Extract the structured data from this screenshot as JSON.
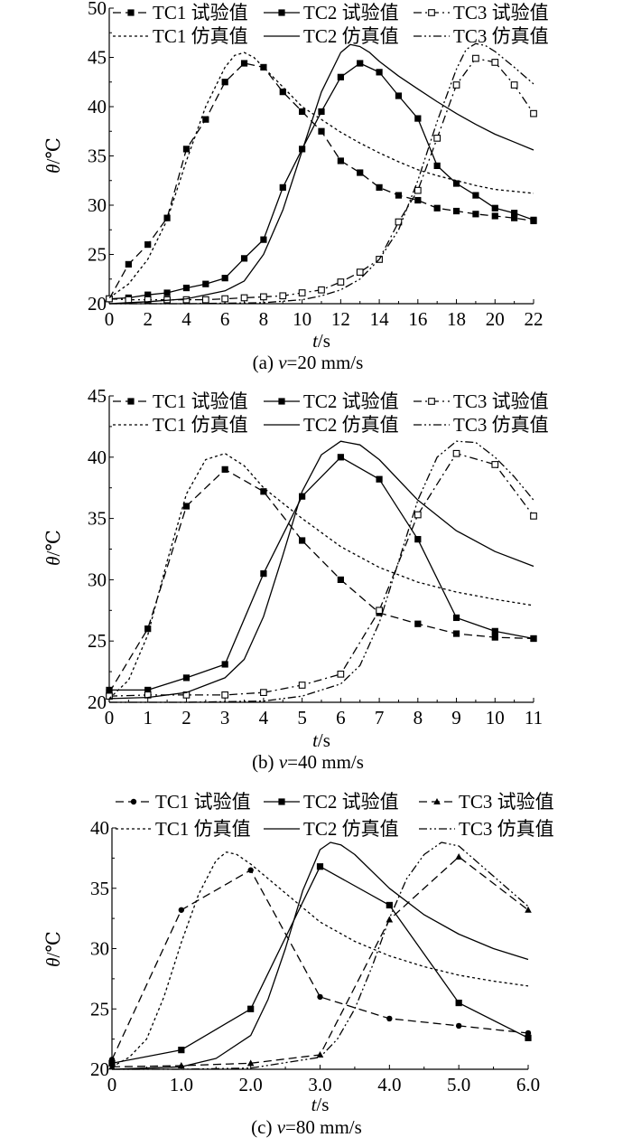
{
  "chart_data": [
    {
      "type": "line",
      "caption": "(a) v=20 mm/s",
      "caption_prefix": "(a) ",
      "caption_var": "v",
      "caption_suffix": "=20 mm/s",
      "xlabel_var": "t",
      "xlabel_unit": "/s",
      "ylabel_var": "θ",
      "ylabel_unit": "/℃",
      "xlim": [
        0,
        22
      ],
      "ylim": [
        20,
        50
      ],
      "xticks": [
        0,
        2,
        4,
        6,
        8,
        10,
        12,
        14,
        16,
        18,
        20,
        22
      ],
      "xtick_labels": [
        "0",
        "2",
        "4",
        "6",
        "8",
        "10",
        "12",
        "14",
        "16",
        "18",
        "20",
        "22"
      ],
      "yticks": [
        20,
        25,
        30,
        35,
        40,
        45,
        50
      ],
      "ytick_labels": [
        "20",
        "25",
        "30",
        "35",
        "40",
        "45",
        "50"
      ],
      "legend": {
        "row1": [
          "TC1 试验值",
          "TC2 试验值",
          "TC3 试验值"
        ],
        "row2": [
          "TC1 仿真值",
          "TC2 仿真值",
          "TC3 仿真值"
        ]
      },
      "series": [
        {
          "name": "TC1 试验值",
          "line": "dashed",
          "marker": "square-filled",
          "x": [
            0,
            1,
            2,
            3,
            4,
            5,
            6,
            7,
            8,
            9,
            10,
            11,
            12,
            13,
            14,
            15,
            16,
            17,
            18,
            19,
            20,
            21,
            22
          ],
          "y": [
            20.5,
            24,
            26,
            28.7,
            35.7,
            38.7,
            42.5,
            44.4,
            44,
            41.5,
            39.5,
            37.5,
            34.5,
            33.3,
            31.8,
            31,
            30.5,
            29.7,
            29.4,
            29.1,
            28.9,
            28.7,
            28.4
          ]
        },
        {
          "name": "TC2 试验值",
          "line": "solid",
          "marker": "square-filled",
          "x": [
            0,
            1,
            2,
            3,
            4,
            5,
            6,
            7,
            8,
            9,
            10,
            11,
            12,
            13,
            14,
            15,
            16,
            17,
            18,
            19,
            20,
            21,
            22
          ],
          "y": [
            20.5,
            20.6,
            20.9,
            21.1,
            21.6,
            22,
            22.6,
            24.6,
            26.5,
            31.8,
            35.7,
            39.5,
            43,
            44.4,
            43.5,
            41.1,
            38.8,
            34,
            32.2,
            31,
            29.7,
            29.2,
            28.5
          ]
        },
        {
          "name": "TC3 试验值",
          "line": "dashdot",
          "marker": "square-open",
          "x": [
            0,
            1,
            2,
            3,
            4,
            5,
            6,
            7,
            8,
            9,
            10,
            11,
            12,
            13,
            14,
            15,
            16,
            17,
            18,
            19,
            20,
            21,
            22
          ],
          "y": [
            20.5,
            20.4,
            20.4,
            20.4,
            20.4,
            20.4,
            20.5,
            20.6,
            20.7,
            20.8,
            21.1,
            21.4,
            22.2,
            23.2,
            24.5,
            28.3,
            31.5,
            36.8,
            42.2,
            44.9,
            44.5,
            42.2,
            39.3
          ]
        },
        {
          "name": "TC1 仿真值",
          "line": "dotted",
          "marker": "none",
          "x": [
            0,
            1,
            2,
            3,
            4,
            5,
            6,
            6.5,
            7,
            7.5,
            8,
            9,
            10,
            11,
            12,
            13,
            14,
            15,
            16,
            17,
            18,
            19,
            20,
            21,
            22
          ],
          "y": [
            20.6,
            22,
            24.5,
            28.5,
            34.5,
            40,
            44,
            45.2,
            45.5,
            45,
            44,
            42,
            40,
            38.7,
            37.4,
            36.3,
            35.3,
            34.4,
            33.6,
            33,
            32.5,
            32,
            31.6,
            31.4,
            31.2
          ]
        },
        {
          "name": "TC2 仿真值",
          "line": "solid",
          "marker": "none",
          "x": [
            0,
            2,
            4,
            6,
            7,
            8,
            9,
            10,
            11,
            12,
            12.5,
            13,
            13.5,
            14,
            15,
            16,
            17,
            18,
            19,
            20,
            21,
            22
          ],
          "y": [
            20,
            20.2,
            20.5,
            21.3,
            22.3,
            25,
            29.5,
            35.5,
            41.5,
            45.5,
            46.3,
            46.1,
            45.5,
            44.6,
            43.1,
            41.8,
            40.5,
            39.3,
            38.2,
            37.2,
            36.4,
            35.6
          ]
        },
        {
          "name": "TC3 仿真值",
          "line": "dashdotdot",
          "marker": "none",
          "x": [
            0,
            4,
            8,
            10,
            11,
            12,
            13,
            14,
            15,
            16,
            17,
            18,
            18.5,
            19,
            19.5,
            20,
            21,
            22
          ],
          "y": [
            20,
            20,
            20.1,
            20.4,
            20.8,
            21.4,
            22.5,
            24.5,
            27.5,
            32.5,
            38.5,
            43.8,
            45.8,
            46.4,
            46.2,
            45.6,
            44,
            42.3
          ]
        }
      ]
    },
    {
      "type": "line",
      "caption": "(b) v=40 mm/s",
      "caption_prefix": "(b) ",
      "caption_var": "v",
      "caption_suffix": "=40 mm/s",
      "xlabel_var": "t",
      "xlabel_unit": "/s",
      "ylabel_var": "θ",
      "ylabel_unit": "/℃",
      "xlim": [
        0,
        11
      ],
      "ylim": [
        20,
        45
      ],
      "xticks": [
        0,
        1,
        2,
        3,
        4,
        5,
        6,
        7,
        8,
        9,
        10,
        11
      ],
      "xtick_labels": [
        "0",
        "1",
        "2",
        "3",
        "4",
        "5",
        "6",
        "7",
        "8",
        "9",
        "10",
        "11"
      ],
      "yticks": [
        20,
        25,
        30,
        35,
        40,
        45
      ],
      "ytick_labels": [
        "20",
        "25",
        "30",
        "35",
        "40",
        "45"
      ],
      "legend": {
        "row1": [
          "TC1 试验值",
          "TC2 试验值",
          "TC3 试验值"
        ],
        "row2": [
          "TC1 仿真值",
          "TC2 仿真值",
          "TC3 仿真值"
        ]
      },
      "series": [
        {
          "name": "TC1 试验值",
          "line": "dashed",
          "marker": "square-filled",
          "x": [
            0,
            1,
            2,
            3,
            4,
            5,
            6,
            7,
            8,
            9,
            10,
            11
          ],
          "y": [
            20.8,
            26,
            36,
            39,
            37.2,
            33.2,
            30,
            27.3,
            26.4,
            25.6,
            25.3,
            25.2
          ]
        },
        {
          "name": "TC2 试验值",
          "line": "solid",
          "marker": "square-filled",
          "x": [
            0,
            1,
            2,
            3,
            4,
            5,
            6,
            7,
            8,
            9,
            10,
            11
          ],
          "y": [
            21,
            21,
            22,
            23.1,
            30.5,
            36.8,
            40,
            38.2,
            33.3,
            26.9,
            25.8,
            25.2
          ]
        },
        {
          "name": "TC3 试验值",
          "line": "dashdot",
          "marker": "square-open",
          "x": [
            0,
            1,
            2,
            3,
            4,
            5,
            6,
            7,
            8,
            9,
            10,
            11
          ],
          "y": [
            20.5,
            20.6,
            20.6,
            20.6,
            20.8,
            21.4,
            22.3,
            27.5,
            35.3,
            40.3,
            39.4,
            35.2
          ]
        },
        {
          "name": "TC1 仿真值",
          "line": "dotted",
          "marker": "none",
          "x": [
            0,
            0.5,
            1,
            1.5,
            2,
            2.5,
            3,
            3.5,
            4,
            5,
            6,
            7,
            8,
            9,
            10,
            11
          ],
          "y": [
            20.3,
            21.8,
            25.5,
            31.5,
            37,
            39.8,
            40.3,
            39.3,
            37.5,
            35,
            32.7,
            31,
            29.8,
            29,
            28.4,
            27.9
          ]
        },
        {
          "name": "TC2 仿真值",
          "line": "solid",
          "marker": "none",
          "x": [
            0,
            1,
            2,
            3,
            3.5,
            4,
            4.5,
            5,
            5.5,
            6,
            6.5,
            7,
            8,
            9,
            10,
            11
          ],
          "y": [
            20.3,
            20.4,
            20.8,
            22,
            23.5,
            27,
            32,
            37.2,
            40.2,
            41.3,
            41,
            39.8,
            36.5,
            34,
            32.3,
            31.1
          ]
        },
        {
          "name": "TC3 仿真值",
          "line": "dashdotdot",
          "marker": "none",
          "x": [
            0,
            2,
            4,
            5,
            6,
            6.5,
            7,
            7.5,
            8,
            8.5,
            9,
            9.5,
            10,
            10.5,
            11
          ],
          "y": [
            20,
            20,
            20.1,
            20.5,
            21.5,
            23,
            26.5,
            31.5,
            36.5,
            40,
            41.3,
            41.2,
            40,
            38.4,
            36.5
          ]
        }
      ]
    },
    {
      "type": "line",
      "caption": "(c) v=80 mm/s",
      "caption_prefix": "(c) ",
      "caption_var": "v",
      "caption_suffix": "=80 mm/s",
      "xlabel_var": "t",
      "xlabel_unit": "/s",
      "ylabel_var": "θ",
      "ylabel_unit": "/℃",
      "xlim": [
        0,
        6
      ],
      "ylim": [
        20,
        40
      ],
      "xticks": [
        0,
        1,
        2,
        3,
        4,
        5,
        6
      ],
      "xtick_labels": [
        "0",
        "1.0",
        "2.0",
        "3.0",
        "4.0",
        "5.0",
        "6.0"
      ],
      "yticks": [
        20,
        25,
        30,
        35,
        40
      ],
      "ytick_labels": [
        "20",
        "25",
        "30",
        "35",
        "40"
      ],
      "legend": {
        "row1": [
          "TC1 试验值",
          "TC2 试验值",
          "TC3 试验值"
        ],
        "row2": [
          "TC1 仿真值",
          "TC2 仿真值",
          "TC3 仿真值"
        ]
      },
      "series": [
        {
          "name": "TC1 试验值",
          "line": "dashed",
          "marker": "circle-filled",
          "x": [
            0,
            1,
            2,
            3,
            4,
            5,
            6
          ],
          "y": [
            20.8,
            33.2,
            36.5,
            26,
            24.2,
            23.6,
            23
          ]
        },
        {
          "name": "TC2 试验值",
          "line": "solid",
          "marker": "square-filled",
          "x": [
            0,
            1,
            2,
            3,
            4,
            5,
            6
          ],
          "y": [
            20.5,
            21.6,
            25,
            36.8,
            33.6,
            25.5,
            22.6
          ]
        },
        {
          "name": "TC3 试验值",
          "line": "dashed",
          "marker": "triangle-filled",
          "x": [
            0,
            1,
            2,
            3,
            4,
            5,
            6
          ],
          "y": [
            20.2,
            20.3,
            20.5,
            21.2,
            32.4,
            37.6,
            33.2
          ]
        },
        {
          "name": "TC1 仿真值",
          "line": "dotted",
          "marker": "none",
          "x": [
            0,
            0.25,
            0.5,
            0.75,
            1,
            1.25,
            1.5,
            1.65,
            1.8,
            2,
            2.5,
            3,
            3.5,
            4,
            4.5,
            5,
            5.5,
            6
          ],
          "y": [
            20.2,
            21,
            22.5,
            26,
            30.5,
            34.5,
            37.3,
            38,
            37.8,
            37,
            34.6,
            32.2,
            30.6,
            29.4,
            28.5,
            27.8,
            27.3,
            26.9
          ]
        },
        {
          "name": "TC2 仿真值",
          "line": "solid",
          "marker": "none",
          "x": [
            0,
            1,
            1.5,
            2,
            2.25,
            2.5,
            2.75,
            3,
            3.15,
            3.3,
            3.5,
            4,
            4.5,
            5,
            5.5,
            6
          ],
          "y": [
            20,
            20.2,
            20.9,
            22.8,
            25.8,
            30,
            34.8,
            38.2,
            38.8,
            38.6,
            37.8,
            35,
            32.8,
            31.2,
            30,
            29.1
          ]
        },
        {
          "name": "TC3 仿真值",
          "line": "dashdotdot",
          "marker": "none",
          "x": [
            0,
            1,
            2,
            3,
            3.25,
            3.5,
            3.75,
            4,
            4.25,
            4.5,
            4.75,
            5,
            5.5,
            6
          ],
          "y": [
            20,
            20,
            20.1,
            21,
            22.5,
            25,
            28.5,
            32.5,
            35.8,
            37.8,
            38.8,
            38.5,
            36,
            33.5
          ]
        }
      ]
    }
  ]
}
